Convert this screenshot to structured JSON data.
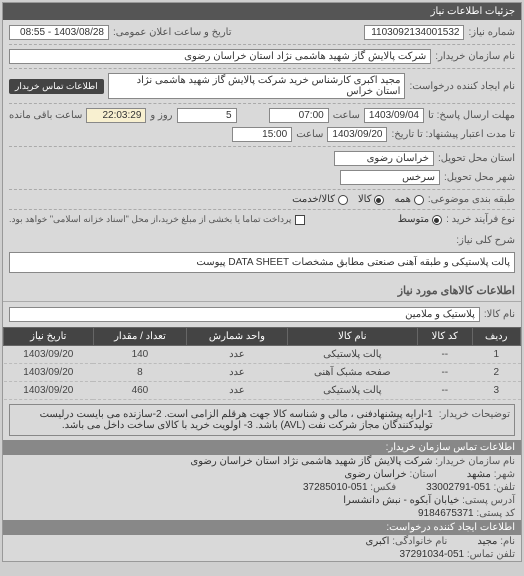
{
  "panel_title": "جزئیات اطلاعات نیاز",
  "fields": {
    "need_no_label": "شماره نیاز:",
    "need_no": "1103092134001532",
    "announce_label": "تاریخ و ساعت اعلان عمومی:",
    "announce_val": "1403/08/28 - 08:55",
    "buyer_label": "نام سازمان خریدار:",
    "buyer_val": "شرکت پالایش گاز شهید هاشمی نژاد   استان خراسان رضوی",
    "requester_label": "نام ایجاد کننده درخواست:",
    "requester_val": "مجید اکبری کارشناس خرید شرکت پالایش گاز شهید هاشمی نژاد   استان خراس",
    "contact_badge": "اطلاعات تماس خریدار",
    "deadline_from_label": "مهلت ارسال پاسخ: تا",
    "deadline_date": "1403/09/04",
    "time_label": "ساعت",
    "deadline_time": "07:00",
    "days_label": "روز و",
    "days_val": "5",
    "remain_label": "ساعت باقی مانده",
    "remain_val": "22:03:29",
    "validity_label": "تا مدت اعتبار پیشنهاد: تا تاریخ:",
    "validity_date": "1403/09/20",
    "validity_time": "15:00",
    "loc_req_label": "استان محل تحویل:",
    "loc_req_val": "خراسان رضوی",
    "loc_del_label": "شهر محل تحویل:",
    "loc_del_val": "سرخس",
    "group_label": "طبقه بندی موضوعی:",
    "radio_all": "همه",
    "radio_goods": "کالا",
    "radio_service": "کالا/خدمت",
    "buy_type_label": "نوع فرآیند خرید :",
    "radio_mid": "متوسط",
    "pay_note_label": "",
    "pay_note": "پرداخت تماما یا بخشی از مبلغ خرید،از محل \"اسناد خزانه اسلامی\" خواهد بود.",
    "desc_label": "شرح کلی نیاز:",
    "desc_val": "پالت پلاستیکی و طبقه آهنی صنعتی مطابق مشخصات DATA SHEET پیوست",
    "items_title": "اطلاعات کالاهای مورد نیاز",
    "cat_label": "نام کالا:",
    "cat_val": "پلاستیک و ملامین"
  },
  "table": {
    "headers": [
      "ردیف",
      "کد کالا",
      "نام کالا",
      "واحد شمارش",
      "تعداد / مقدار",
      "تاریخ نیاز"
    ],
    "rows": [
      [
        "1",
        "--",
        "پالت پلاستیکی",
        "عدد",
        "140",
        "1403/09/20"
      ],
      [
        "2",
        "--",
        "صفحه مشبک آهنی",
        "عدد",
        "8",
        "1403/09/20"
      ],
      [
        "3",
        "--",
        "پالت پلاستیکی",
        "عدد",
        "460",
        "1403/09/20"
      ]
    ]
  },
  "notes": {
    "label": "توضیحات خریدار:",
    "text": "1-ارایه پیشنهادفنی ، مالی و شناسه کالا جهت هرقلم الزامی است. 2-سازنده می بایست درلیست تولیدکنندگان مجاز شرکت نفت (AVL) باشد. 3- اولویت خرید با کالای ساخت داخل می باشد."
  },
  "contact": {
    "header": "اطلاعات تماس سازمان خریدار:",
    "org_label": "نام سازمان خریدار:",
    "org_val": "شرکت پالایش گاز شهید هاشمی نژاد استان خراسان رضوی",
    "city_label": "شهر:",
    "city_val": "مشهد",
    "province_label": "استان:",
    "province_val": "خراسان رضوی",
    "phone_label": "تلفن:",
    "phone_val": "051-33002791",
    "fax_label": "فکس:",
    "fax_val": "051-37285010",
    "postal_label": "آدرس پستی:",
    "postal_val": "خیابان آبکوه - نبش دانشسرا",
    "postcode_label": "کد پستی:",
    "postcode_val": "9184675371",
    "creator_header": "اطلاعات ایجاد کننده درخواست:",
    "name_label": "نام:",
    "name_val": "مجید",
    "family_label": "نام خانوادگی:",
    "family_val": "اکبری",
    "cphone_label": "تلفن تماس:",
    "cphone_val": "051-37291034"
  }
}
